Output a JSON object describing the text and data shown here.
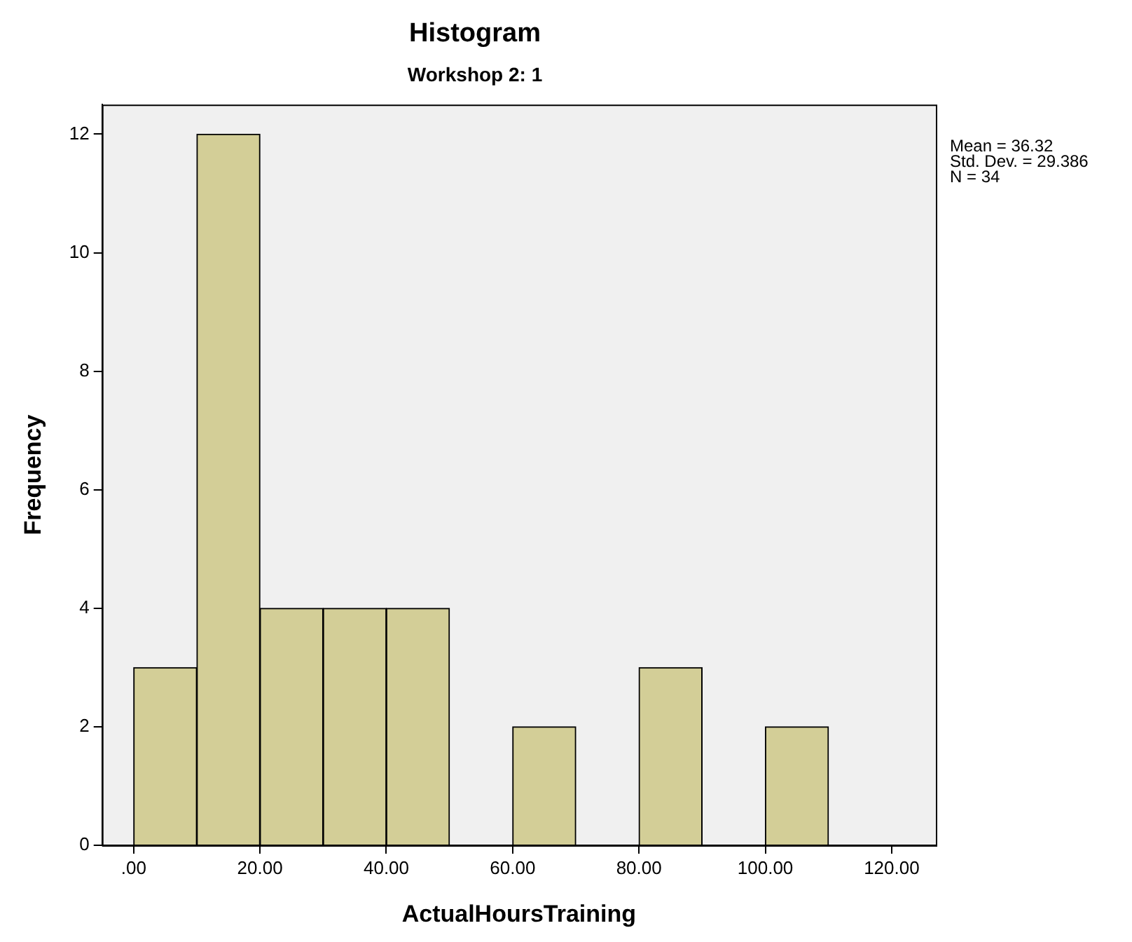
{
  "chart_data": {
    "type": "histogram",
    "title": "Histogram",
    "subtitle": "Workshop 2: 1",
    "xlabel": "ActualHoursTraining",
    "ylabel": "Frequency",
    "bins": [
      0,
      10,
      20,
      30,
      40,
      50,
      60,
      70,
      80,
      90,
      100,
      110
    ],
    "values": [
      3,
      12,
      4,
      4,
      4,
      0,
      2,
      0,
      3,
      0,
      2
    ],
    "color": "#d3ce97",
    "xlim": [
      -5,
      127
    ],
    "ylim": [
      0,
      12.5
    ],
    "xticks": [
      {
        "value": 0,
        "label": ".00"
      },
      {
        "value": 20,
        "label": "20.00"
      },
      {
        "value": 40,
        "label": "40.00"
      },
      {
        "value": 60,
        "label": "60.00"
      },
      {
        "value": 80,
        "label": "80.00"
      },
      {
        "value": 100,
        "label": "100.00"
      },
      {
        "value": 120,
        "label": "120.00"
      }
    ],
    "yticks": [
      0,
      2,
      4,
      6,
      8,
      10,
      12
    ],
    "annotations": [
      "Mean = 36.32",
      "Std. Dev. = 29.386",
      "N = 34"
    ]
  }
}
